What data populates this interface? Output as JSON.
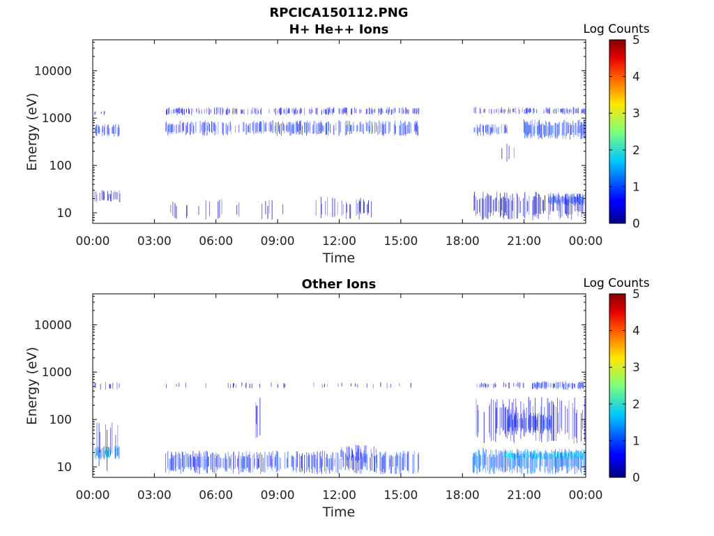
{
  "chart_data": [
    {
      "type": "heatmap",
      "title_lines": [
        "RPCICA150112.PNG",
        "H+ He++ Ions"
      ],
      "xlabel": "Time",
      "ylabel": "Energy (eV)",
      "x_ticks": [
        "00:00",
        "03:00",
        "06:00",
        "09:00",
        "12:00",
        "15:00",
        "18:00",
        "21:00",
        "00:00"
      ],
      "x_range_hours": [
        0,
        24
      ],
      "y_scale": "log",
      "y_range": [
        6,
        45000
      ],
      "y_ticks": [
        10,
        100,
        1000,
        10000
      ],
      "y_tick_labels": [
        "10",
        "100",
        "1000",
        "10000"
      ],
      "colorbar": {
        "label": "Log Counts",
        "range": [
          0,
          5
        ],
        "ticks": [
          "0",
          "1",
          "2",
          "3",
          "4",
          "5"
        ],
        "colormap": "jet"
      },
      "bands": [
        {
          "t0": 0.1,
          "t1": 1.35,
          "e0": 400,
          "e1": 750,
          "level": 0.9,
          "density": 0.6
        },
        {
          "t0": 0.1,
          "t1": 0.6,
          "e0": 1150,
          "e1": 1450,
          "level": 0.5,
          "density": 0.3
        },
        {
          "t0": 0.1,
          "t1": 1.35,
          "e0": 16,
          "e1": 30,
          "level": 0.4,
          "density": 0.5
        },
        {
          "t0": 3.55,
          "t1": 15.9,
          "e0": 420,
          "e1": 900,
          "level": 0.9,
          "density": 0.6
        },
        {
          "t0": 3.55,
          "t1": 15.9,
          "e0": 1150,
          "e1": 1700,
          "level": 0.6,
          "density": 0.45
        },
        {
          "t0": 3.55,
          "t1": 9.5,
          "e0": 7,
          "e1": 20,
          "level": 0.3,
          "density": 0.12
        },
        {
          "t0": 10.8,
          "t1": 13.9,
          "e0": 7,
          "e1": 22,
          "level": 0.35,
          "density": 0.3
        },
        {
          "t0": 18.5,
          "t1": 20.3,
          "e0": 420,
          "e1": 750,
          "level": 0.95,
          "density": 0.55
        },
        {
          "t0": 18.5,
          "t1": 24.0,
          "e0": 1200,
          "e1": 1700,
          "level": 0.7,
          "density": 0.55
        },
        {
          "t0": 21.0,
          "t1": 24.0,
          "e0": 350,
          "e1": 950,
          "level": 1.0,
          "density": 0.8
        },
        {
          "t0": 19.5,
          "t1": 21.0,
          "e0": 120,
          "e1": 300,
          "level": 0.3,
          "density": 0.15
        },
        {
          "t0": 18.55,
          "t1": 24.0,
          "e0": 7,
          "e1": 28,
          "level": 0.4,
          "density": 0.55
        },
        {
          "t0": 22.2,
          "t1": 23.95,
          "e0": 14,
          "e1": 26,
          "level": 1.0,
          "density": 0.9
        }
      ]
    },
    {
      "type": "heatmap",
      "title_lines": [
        "Other Ions"
      ],
      "xlabel": "Time",
      "ylabel": "Energy (eV)",
      "x_ticks": [
        "00:00",
        "03:00",
        "06:00",
        "09:00",
        "12:00",
        "15:00",
        "18:00",
        "21:00",
        "00:00"
      ],
      "x_range_hours": [
        0,
        24
      ],
      "y_scale": "log",
      "y_range": [
        6,
        45000
      ],
      "y_ticks": [
        10,
        100,
        1000,
        10000
      ],
      "y_tick_labels": [
        "10",
        "100",
        "1000",
        "10000"
      ],
      "colorbar": {
        "label": "Log Counts",
        "range": [
          0,
          5
        ],
        "ticks": [
          "0",
          "1",
          "2",
          "3",
          "4",
          "5"
        ],
        "colormap": "jet"
      },
      "bands": [
        {
          "t0": 0.1,
          "t1": 1.35,
          "e0": 420,
          "e1": 620,
          "level": 0.6,
          "density": 0.4
        },
        {
          "t0": 0.1,
          "t1": 1.35,
          "e0": 14,
          "e1": 28,
          "level": 1.5,
          "density": 0.75
        },
        {
          "t0": 0.1,
          "t1": 1.35,
          "e0": 8,
          "e1": 120,
          "level": 0.4,
          "density": 0.25
        },
        {
          "t0": 3.55,
          "t1": 15.9,
          "e0": 7,
          "e1": 22,
          "level": 0.9,
          "density": 0.55
        },
        {
          "t0": 3.55,
          "t1": 15.9,
          "e0": 450,
          "e1": 620,
          "level": 0.3,
          "density": 0.1
        },
        {
          "t0": 7.9,
          "t1": 8.15,
          "e0": 40,
          "e1": 300,
          "level": 0.6,
          "density": 0.6
        },
        {
          "t0": 11.8,
          "t1": 13.8,
          "e0": 12,
          "e1": 30,
          "level": 0.8,
          "density": 0.4
        },
        {
          "t0": 18.5,
          "t1": 24.0,
          "e0": 7,
          "e1": 25,
          "level": 1.3,
          "density": 0.9
        },
        {
          "t0": 20.0,
          "t1": 24.0,
          "e0": 14,
          "e1": 22,
          "level": 1.8,
          "density": 0.9
        },
        {
          "t0": 18.6,
          "t1": 24.0,
          "e0": 30,
          "e1": 300,
          "level": 0.6,
          "density": 0.4
        },
        {
          "t0": 20.2,
          "t1": 22.4,
          "e0": 50,
          "e1": 140,
          "level": 0.9,
          "density": 0.7
        },
        {
          "t0": 18.5,
          "t1": 21.0,
          "e0": 450,
          "e1": 620,
          "level": 0.5,
          "density": 0.3
        },
        {
          "t0": 21.3,
          "t1": 24.0,
          "e0": 420,
          "e1": 650,
          "level": 0.9,
          "density": 0.7
        }
      ]
    }
  ]
}
